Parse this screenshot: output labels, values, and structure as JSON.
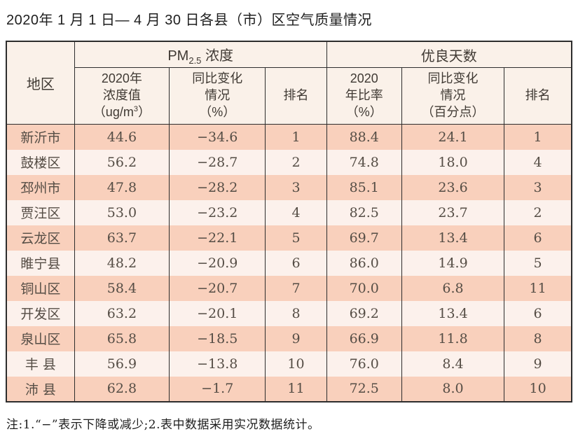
{
  "title": "2020年 1 月 1 日— 4 月 30 日各县（市）区空气质量情况",
  "table": {
    "headers": {
      "region": "地区",
      "pm_group": {
        "prefix": "PM",
        "sub": "2.5",
        "suffix": " 浓度"
      },
      "good_days_group": "优良天数"
    },
    "sub_headers": {
      "pm_value": [
        "2020年",
        "浓度值"
      ],
      "pm_value_unit": [
        "（ug/m",
        "3",
        "）"
      ],
      "pm_change": [
        "同比变化",
        "情况",
        "（%）"
      ],
      "pm_rank": "排名",
      "ratio": [
        "2020",
        "年比率",
        "（%）"
      ],
      "ratio_change": [
        "同比变化",
        "情况",
        "（百分点）"
      ],
      "ratio_rank": "排名"
    },
    "rows": [
      [
        "新沂市",
        "44.6",
        "−34.6",
        "1",
        "88.4",
        "24.1",
        "1"
      ],
      [
        "鼓楼区",
        "56.2",
        "−28.7",
        "2",
        "74.8",
        "18.0",
        "4"
      ],
      [
        "邳州市",
        "47.8",
        "−28.2",
        "3",
        "85.1",
        "23.6",
        "3"
      ],
      [
        "贾汪区",
        "53.0",
        "−23.2",
        "4",
        "82.5",
        "23.7",
        "2"
      ],
      [
        "云龙区",
        "63.7",
        "−22.1",
        "5",
        "69.7",
        "13.4",
        "6"
      ],
      [
        "睢宁县",
        "48.2",
        "−20.9",
        "6",
        "86.0",
        "14.9",
        "5"
      ],
      [
        "铜山区",
        "58.4",
        "−20.7",
        "7",
        "70.0",
        "6.8",
        "11"
      ],
      [
        "开发区",
        "63.2",
        "−20.1",
        "8",
        "69.2",
        "13.4",
        "6"
      ],
      [
        "泉山区",
        "65.8",
        "−18.5",
        "9",
        "66.9",
        "11.8",
        "8"
      ],
      [
        "丰 县",
        "56.9",
        "−13.8",
        "10",
        "76.0",
        "8.4",
        "9"
      ],
      [
        "沛 县",
        "62.8",
        "−1.7",
        "11",
        "72.5",
        "8.0",
        "10"
      ]
    ]
  },
  "note": "注:1.“−”表示下降或减少;2.表中数据采用实况数据统计。",
  "colors": {
    "row_odd": "#f9d0bc",
    "row_even": "#fcf1ec",
    "header_bg": "#faf1e9",
    "border": "#2d2d2d",
    "data_text": "#554d45"
  }
}
